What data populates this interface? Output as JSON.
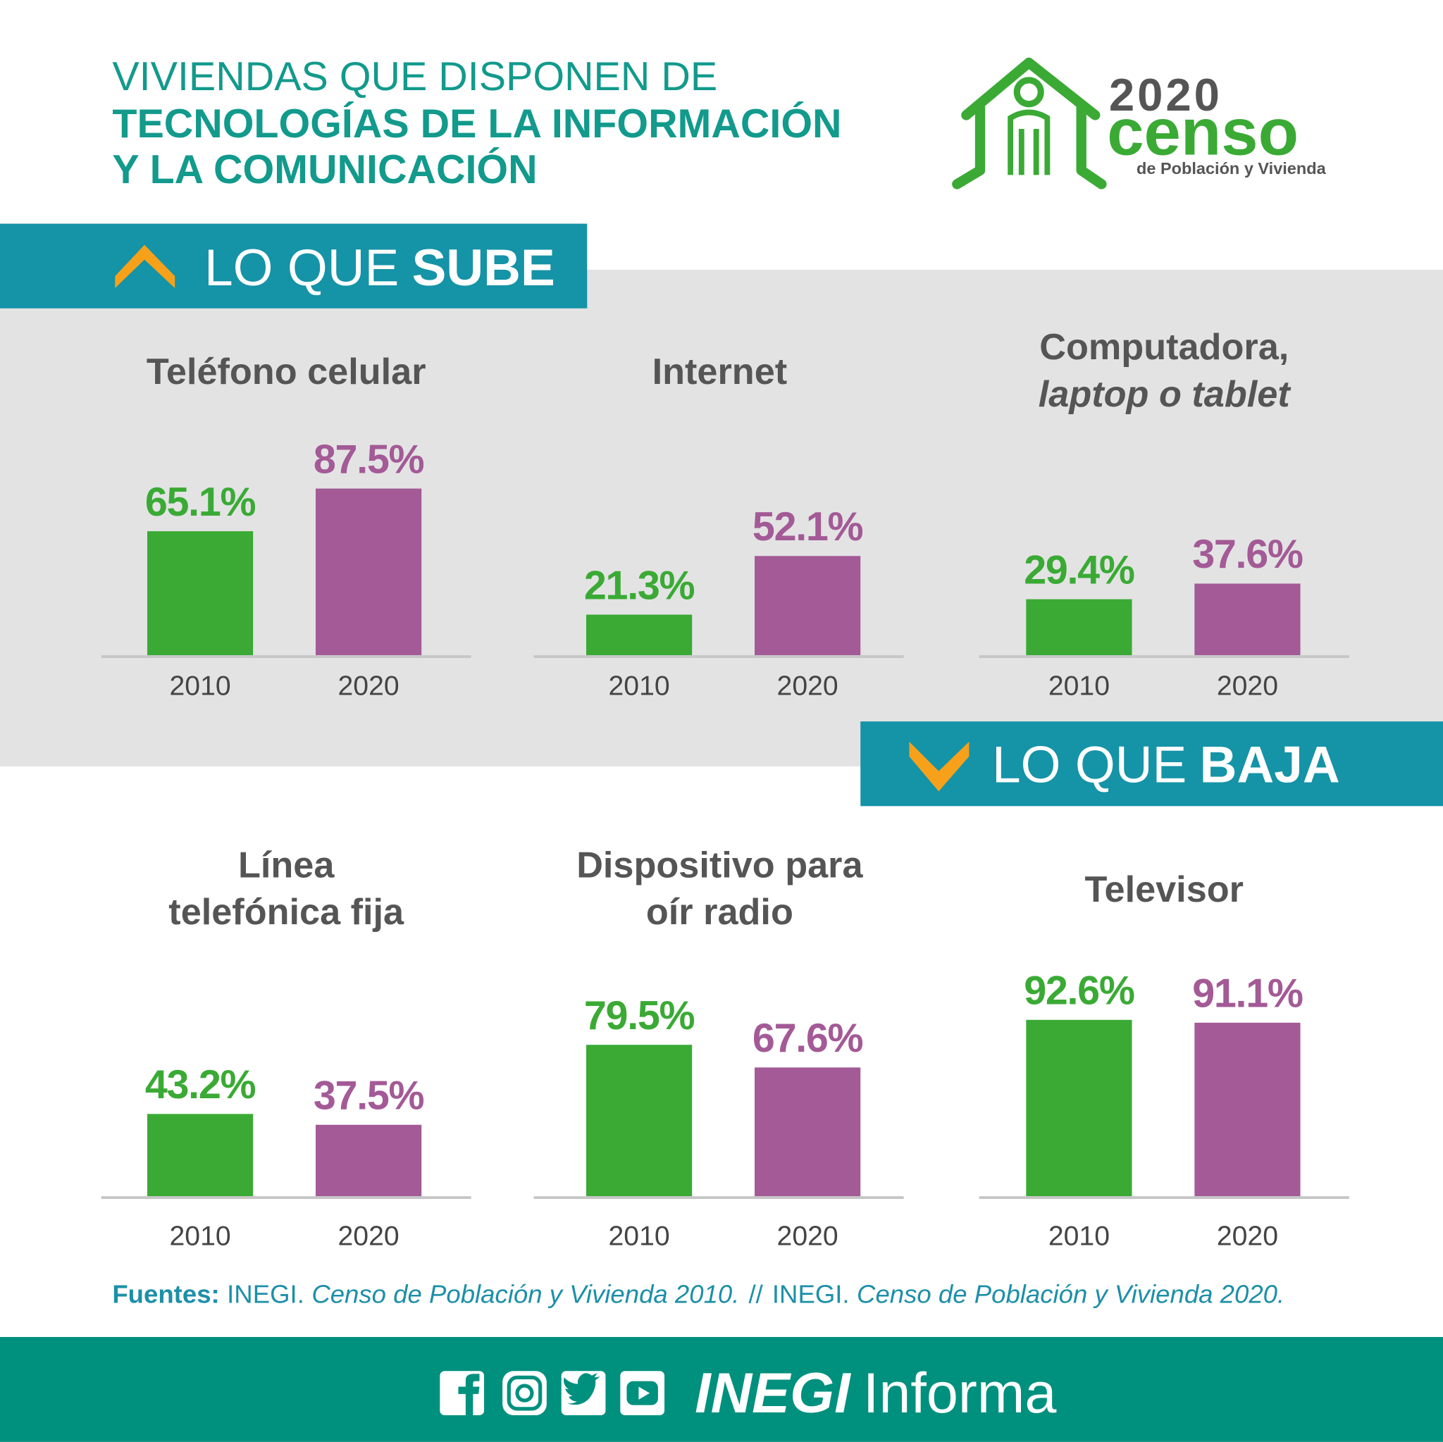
{
  "header": {
    "line1": "VIVIENDAS QUE DISPONEN DE",
    "line2": "TECNOLOGÍAS DE LA INFORMACIÓN",
    "line3": "Y LA COMUNICACIÓN"
  },
  "logo": {
    "year": "2020",
    "name": "censo",
    "subtitle": "de Población y Vivienda"
  },
  "sections": [
    {
      "light": "LO QUE",
      "bold": "SUBE"
    },
    {
      "light": "LO QUE",
      "bold": "BAJA"
    }
  ],
  "chart_data": [
    {
      "type": "bar",
      "title": [
        "Teléfono celular"
      ],
      "categories": [
        "2010",
        "2020"
      ],
      "values": [
        65.1,
        87.5
      ],
      "value_labels": [
        "65.1%",
        "87.5%"
      ],
      "colors": [
        "#3aaa35",
        "#a35a96"
      ]
    },
    {
      "type": "bar",
      "title": [
        "Internet"
      ],
      "categories": [
        "2010",
        "2020"
      ],
      "values": [
        21.3,
        52.1
      ],
      "value_labels": [
        "21.3%",
        "52.1%"
      ],
      "colors": [
        "#3aaa35",
        "#a35a96"
      ]
    },
    {
      "type": "bar",
      "title": [
        "Computadora,",
        "laptop o tablet"
      ],
      "title_style": [
        "normal",
        "italic"
      ],
      "categories": [
        "2010",
        "2020"
      ],
      "values": [
        29.4,
        37.6
      ],
      "value_labels": [
        "29.4%",
        "37.6%"
      ],
      "colors": [
        "#3aaa35",
        "#a35a96"
      ]
    },
    {
      "type": "bar",
      "title": [
        "Línea",
        "telefónica fija"
      ],
      "categories": [
        "2010",
        "2020"
      ],
      "values": [
        43.2,
        37.5
      ],
      "value_labels": [
        "43.2%",
        "37.5%"
      ],
      "colors": [
        "#3aaa35",
        "#a35a96"
      ]
    },
    {
      "type": "bar",
      "title": [
        "Dispositivo para",
        "oír radio"
      ],
      "categories": [
        "2010",
        "2020"
      ],
      "values": [
        79.5,
        67.6
      ],
      "value_labels": [
        "79.5%",
        "67.6%"
      ],
      "colors": [
        "#3aaa35",
        "#a35a96"
      ]
    },
    {
      "type": "bar",
      "title": [
        "Televisor"
      ],
      "categories": [
        "2010",
        "2020"
      ],
      "values": [
        92.6,
        91.1
      ],
      "value_labels": [
        "92.6%",
        "91.1%"
      ],
      "colors": [
        "#3aaa35",
        "#a35a96"
      ]
    }
  ],
  "sources": {
    "label": "Fuentes:",
    "separator": "//",
    "items": [
      {
        "org": "INEGI.",
        "title": "Censo de Población y Vivienda 2010."
      },
      {
        "org": "INEGI.",
        "title": "Censo de Población y Vivienda 2020."
      }
    ]
  },
  "footer": {
    "brand": "INEGI",
    "suffix": "Informa"
  }
}
